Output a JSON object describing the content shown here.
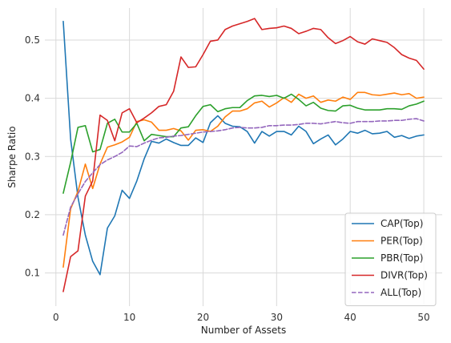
{
  "chart_data": {
    "type": "line",
    "title": "",
    "xlabel": "Number of Assets",
    "ylabel": "Sharpe Ratio",
    "xlim": [
      -1.5,
      52.5
    ],
    "ylim": [
      0.043,
      0.555
    ],
    "xticks": [
      0,
      10,
      20,
      30,
      40,
      50
    ],
    "yticks": [
      0.1,
      0.2,
      0.3,
      0.4,
      0.5
    ],
    "ytick_labels": [
      "0.1",
      "0.2",
      "0.3",
      "0.4",
      "0.5"
    ],
    "grid": true,
    "legend": "bottom-right",
    "x": [
      1,
      2,
      3,
      4,
      5,
      6,
      7,
      8,
      9,
      10,
      11,
      12,
      13,
      14,
      15,
      16,
      17,
      18,
      19,
      20,
      21,
      22,
      23,
      24,
      25,
      26,
      27,
      28,
      29,
      30,
      31,
      32,
      33,
      34,
      35,
      36,
      37,
      38,
      39,
      40,
      41,
      42,
      43,
      44,
      45,
      46,
      47,
      48,
      49,
      50
    ],
    "series": [
      {
        "name": "CAP(Top)",
        "color": "#1f77b4",
        "dash": "solid",
        "values": [
          0.532,
          0.33,
          0.23,
          0.165,
          0.12,
          0.097,
          0.177,
          0.198,
          0.242,
          0.228,
          0.258,
          0.296,
          0.326,
          0.323,
          0.33,
          0.324,
          0.319,
          0.319,
          0.332,
          0.324,
          0.358,
          0.37,
          0.357,
          0.352,
          0.351,
          0.343,
          0.323,
          0.343,
          0.335,
          0.343,
          0.343,
          0.337,
          0.352,
          0.343,
          0.322,
          0.33,
          0.337,
          0.32,
          0.33,
          0.343,
          0.34,
          0.345,
          0.339,
          0.34,
          0.343,
          0.333,
          0.336,
          0.331,
          0.335,
          0.337
        ]
      },
      {
        "name": "PER(Top)",
        "color": "#ff7f0e",
        "dash": "solid",
        "values": [
          0.11,
          0.21,
          0.24,
          0.287,
          0.245,
          0.287,
          0.316,
          0.32,
          0.325,
          0.333,
          0.36,
          0.363,
          0.359,
          0.345,
          0.345,
          0.348,
          0.344,
          0.328,
          0.345,
          0.346,
          0.343,
          0.352,
          0.368,
          0.378,
          0.378,
          0.382,
          0.392,
          0.395,
          0.385,
          0.392,
          0.401,
          0.393,
          0.407,
          0.4,
          0.404,
          0.393,
          0.397,
          0.395,
          0.402,
          0.398,
          0.41,
          0.41,
          0.406,
          0.405,
          0.407,
          0.409,
          0.406,
          0.408,
          0.4,
          0.402
        ]
      },
      {
        "name": "PBR(Top)",
        "color": "#2ca02c",
        "dash": "solid",
        "values": [
          0.237,
          0.29,
          0.35,
          0.353,
          0.308,
          0.312,
          0.357,
          0.364,
          0.342,
          0.342,
          0.357,
          0.327,
          0.338,
          0.336,
          0.334,
          0.334,
          0.349,
          0.351,
          0.37,
          0.386,
          0.389,
          0.377,
          0.382,
          0.384,
          0.384,
          0.396,
          0.404,
          0.405,
          0.403,
          0.405,
          0.4,
          0.407,
          0.398,
          0.387,
          0.393,
          0.383,
          0.379,
          0.378,
          0.387,
          0.388,
          0.383,
          0.38,
          0.38,
          0.38,
          0.382,
          0.382,
          0.381,
          0.387,
          0.39,
          0.395
        ]
      },
      {
        "name": "DIVR(Top)",
        "color": "#d62728",
        "dash": "solid",
        "values": [
          0.068,
          0.128,
          0.138,
          0.232,
          0.258,
          0.371,
          0.362,
          0.327,
          0.375,
          0.382,
          0.358,
          0.366,
          0.375,
          0.386,
          0.389,
          0.412,
          0.471,
          0.453,
          0.454,
          0.475,
          0.498,
          0.5,
          0.518,
          0.524,
          0.528,
          0.532,
          0.537,
          0.518,
          0.52,
          0.521,
          0.524,
          0.52,
          0.511,
          0.515,
          0.52,
          0.518,
          0.504,
          0.494,
          0.499,
          0.506,
          0.497,
          0.493,
          0.502,
          0.499,
          0.496,
          0.487,
          0.475,
          0.469,
          0.465,
          0.45
        ]
      },
      {
        "name": "ALL(Top)",
        "color": "#9467bd",
        "dash": "dashed",
        "values": [
          0.165,
          0.213,
          0.236,
          0.257,
          0.272,
          0.286,
          0.294,
          0.3,
          0.307,
          0.318,
          0.317,
          0.323,
          0.328,
          0.332,
          0.333,
          0.335,
          0.336,
          0.338,
          0.34,
          0.342,
          0.343,
          0.344,
          0.346,
          0.349,
          0.35,
          0.349,
          0.349,
          0.35,
          0.353,
          0.353,
          0.354,
          0.354,
          0.355,
          0.357,
          0.357,
          0.356,
          0.358,
          0.36,
          0.358,
          0.357,
          0.36,
          0.36,
          0.36,
          0.361,
          0.361,
          0.362,
          0.362,
          0.364,
          0.365,
          0.361
        ]
      }
    ]
  }
}
